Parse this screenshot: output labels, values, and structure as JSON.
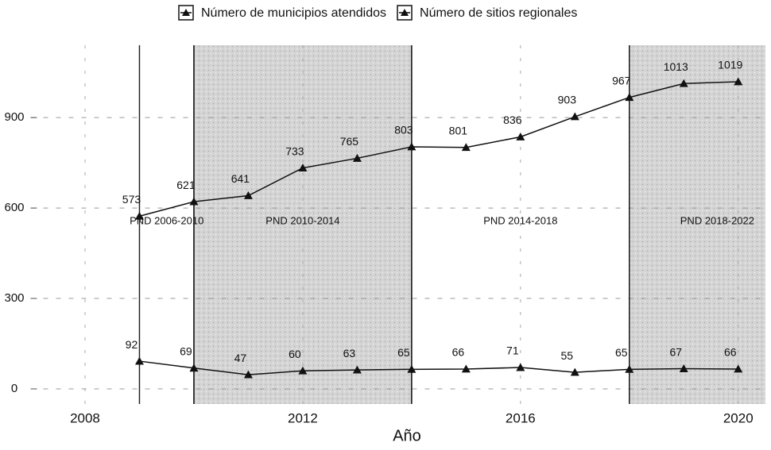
{
  "chart_data": {
    "type": "line",
    "x_label": "Año",
    "x": [
      2009,
      2010,
      2011,
      2012,
      2013,
      2014,
      2015,
      2016,
      2017,
      2018,
      2019,
      2020
    ],
    "series": [
      {
        "name": "Número de municipios atendidos",
        "color": "#111111",
        "values": [
          573,
          621,
          641,
          733,
          765,
          803,
          801,
          836,
          903,
          967,
          1013,
          1019
        ]
      },
      {
        "name": "Número de sitios regionales",
        "color": "#111111",
        "values": [
          92,
          69,
          47,
          60,
          63,
          65,
          66,
          71,
          55,
          65,
          67,
          66
        ]
      }
    ],
    "periods": [
      {
        "label": "PND 2006-2010",
        "start": 2009,
        "end": 2010,
        "shaded": false
      },
      {
        "label": "PND 2010-2014",
        "start": 2010,
        "end": 2014,
        "shaded": true
      },
      {
        "label": "PND 2014-2018",
        "start": 2014,
        "end": 2018,
        "shaded": false
      },
      {
        "label": "PND 2018-2022",
        "start": 2018,
        "end": 2022,
        "shaded": true
      }
    ],
    "xlim": [
      2007,
      2020.5
    ],
    "xticks": [
      2008,
      2012,
      2016,
      2020
    ],
    "ylim": [
      -50,
      1140
    ],
    "yticks": [
      0,
      300,
      600,
      900
    ],
    "grid": true,
    "legend": "top"
  }
}
